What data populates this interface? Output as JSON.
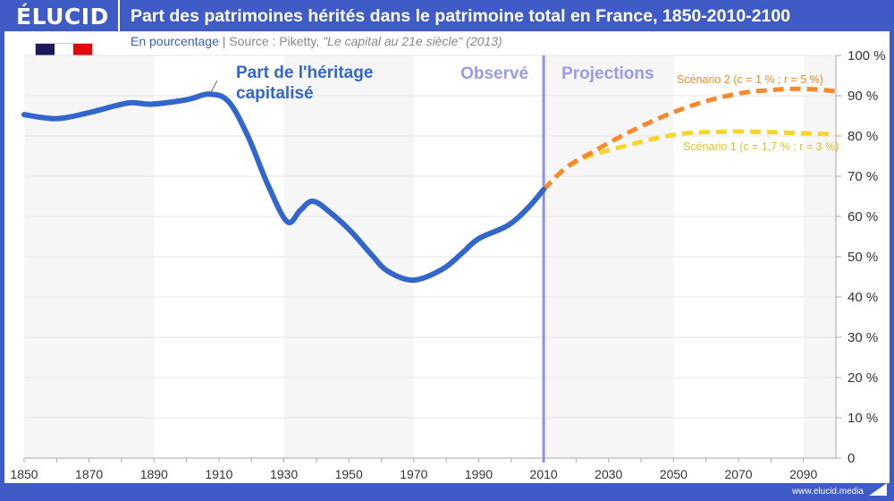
{
  "header": {
    "logo": "ÉLUCID",
    "title": "Part des patrimoines hérités dans le patrimoine total en France, 1850-2010-2100"
  },
  "subtitle": {
    "unit": "En pourcentage",
    "separator": "|",
    "source_prefix": "Source : Piketty, ",
    "source_work": "\"Le capital au 21e siècle\" (2013)"
  },
  "footer": {
    "url": "www.elucid.media"
  },
  "flag": {
    "icon": "france-flag-icon",
    "colors": [
      "#1b1a5c",
      "#ffffff",
      "#e10a0a"
    ]
  },
  "chart_data": {
    "type": "line",
    "title": "Part des patrimoines hérités dans le patrimoine total en France, 1850-2010-2100",
    "xlim": [
      1850,
      2100
    ],
    "ylim": [
      0,
      100
    ],
    "x_ticks": [
      1850,
      1870,
      1890,
      1910,
      1930,
      1950,
      1970,
      1990,
      2010,
      2030,
      2050,
      2070,
      2090
    ],
    "y_ticks": [
      0,
      10,
      20,
      30,
      40,
      50,
      60,
      70,
      80,
      90,
      100
    ],
    "y_tick_labels": [
      "0",
      "10 %",
      "20 %",
      "30 %",
      "40 %",
      "50 %",
      "60 %",
      "70 %",
      "80 %",
      "90 %",
      "100 %"
    ],
    "grid": true,
    "divider_year": 2010,
    "period_labels": {
      "observed": "Observé",
      "projections": "Projections"
    },
    "series": [
      {
        "name": "Part de l'héritage capitalisé",
        "label_line2": "",
        "color": "#3366cc",
        "style": "solid",
        "x": [
          1850,
          1860,
          1870,
          1882,
          1889,
          1900,
          1907,
          1913,
          1919,
          1925,
          1931,
          1935,
          1939,
          1945,
          1951,
          1957,
          1962,
          1970,
          1979,
          1985,
          1990,
          1999,
          2005,
          2010
        ],
        "y": [
          85.3,
          84.3,
          85.8,
          88.2,
          87.9,
          89.0,
          90.4,
          88.5,
          79.8,
          68.0,
          58.7,
          61.5,
          63.8,
          60.5,
          56.0,
          50.5,
          46.4,
          44.2,
          47.0,
          51.0,
          54.5,
          57.8,
          62.0,
          66.7
        ]
      },
      {
        "name": "Scénario 2 (c = 1 % ; r = 5 %)",
        "color": "#f7892a",
        "style": "dashed",
        "x": [
          2010,
          2017,
          2025,
          2035,
          2045,
          2054,
          2063,
          2072,
          2080,
          2086,
          2093,
          2100
        ],
        "y": [
          66.7,
          72.2,
          76.0,
          80.4,
          84.2,
          87.1,
          89.3,
          90.8,
          91.4,
          91.7,
          91.6,
          91.1
        ]
      },
      {
        "name": "Scénario 1 (c = 1,7 % ; r = 3 %)",
        "color": "#f9d42a",
        "style": "dashed",
        "x": [
          2010,
          2016,
          2022,
          2028,
          2035,
          2045,
          2054,
          2063,
          2072,
          2085,
          2100
        ],
        "y": [
          66.7,
          71.5,
          74.4,
          76.0,
          77.5,
          79.5,
          80.7,
          81.0,
          81.1,
          80.8,
          80.4
        ]
      }
    ]
  },
  "labels": {
    "main_series_line1": "Part de l'héritage",
    "main_series_line2": "capitalisé"
  }
}
